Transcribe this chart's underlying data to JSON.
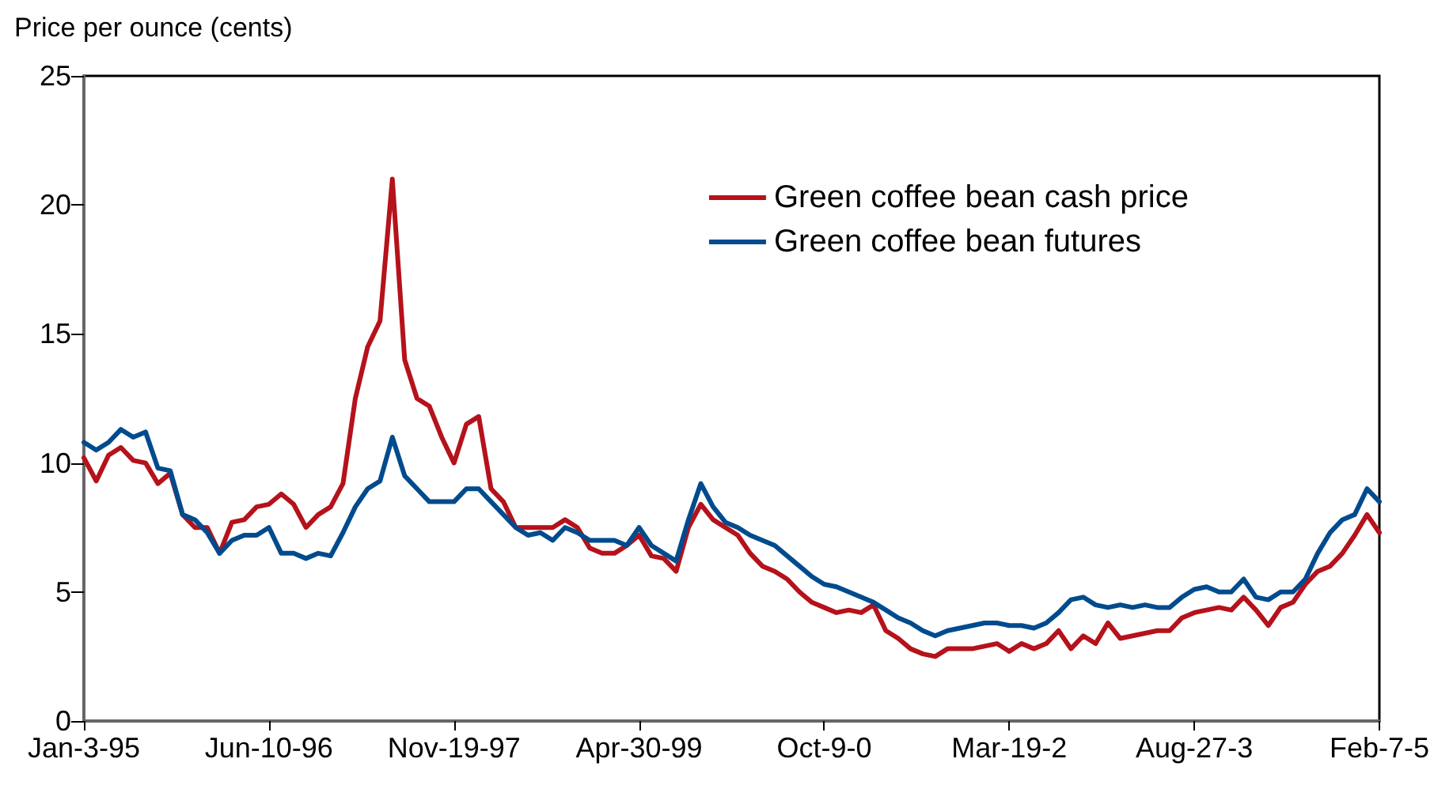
{
  "chart_data": {
    "type": "line",
    "ylabel": "Price per ounce (cents)",
    "categories": [
      "Jan-3-95",
      null,
      null,
      null,
      null,
      null,
      null,
      null,
      null,
      null,
      null,
      null,
      null,
      null,
      null,
      "Jun-10-96",
      null,
      null,
      null,
      null,
      null,
      null,
      null,
      null,
      null,
      null,
      null,
      null,
      null,
      null,
      "Nov-19-97",
      null,
      null,
      null,
      null,
      null,
      null,
      null,
      null,
      null,
      null,
      null,
      null,
      null,
      null,
      "Apr-30-99",
      null,
      null,
      null,
      null,
      null,
      null,
      null,
      null,
      null,
      null,
      null,
      null,
      null,
      null,
      "Oct-9-0",
      null,
      null,
      null,
      null,
      null,
      null,
      null,
      null,
      null,
      null,
      null,
      null,
      null,
      null,
      "Mar-19-2",
      null,
      null,
      null,
      null,
      null,
      null,
      null,
      null,
      null,
      null,
      null,
      null,
      null,
      null,
      "Aug-27-3",
      null,
      null,
      null,
      null,
      null,
      null,
      null,
      null,
      null,
      null,
      null,
      null,
      null,
      null,
      "Feb-7-5"
    ],
    "series": [
      {
        "name": "Green coffee bean cash price",
        "color": "#b5121b",
        "values": [
          10.2,
          9.3,
          10.3,
          10.6,
          10.1,
          10.0,
          9.2,
          9.6,
          8.0,
          7.5,
          7.5,
          6.5,
          7.7,
          7.8,
          8.3,
          8.4,
          8.8,
          8.4,
          7.5,
          8.0,
          8.3,
          9.2,
          12.5,
          14.5,
          15.5,
          21.0,
          14.0,
          12.5,
          12.2,
          11.0,
          10.0,
          11.5,
          11.8,
          9.0,
          8.5,
          7.5,
          7.5,
          7.5,
          7.5,
          7.8,
          7.5,
          6.7,
          6.5,
          6.5,
          6.8,
          7.2,
          6.4,
          6.3,
          5.8,
          7.5,
          8.4,
          7.8,
          7.5,
          7.2,
          6.5,
          6.0,
          5.8,
          5.5,
          5.0,
          4.6,
          4.4,
          4.2,
          4.3,
          4.2,
          4.5,
          3.5,
          3.2,
          2.8,
          2.6,
          2.5,
          2.8,
          2.8,
          2.8,
          2.9,
          3.0,
          2.7,
          3.0,
          2.8,
          3.0,
          3.5,
          2.8,
          3.3,
          3.0,
          3.8,
          3.2,
          3.3,
          3.4,
          3.5,
          3.5,
          4.0,
          4.2,
          4.3,
          4.4,
          4.3,
          4.8,
          4.3,
          3.7,
          4.4,
          4.6,
          5.3,
          5.8,
          6.0,
          6.5,
          7.2,
          8.0,
          7.3
        ]
      },
      {
        "name": "Green coffee bean futures",
        "color": "#004b8d",
        "values": [
          10.8,
          10.5,
          10.8,
          11.3,
          11.0,
          11.2,
          9.8,
          9.7,
          8.0,
          7.8,
          7.3,
          6.5,
          7.0,
          7.2,
          7.2,
          7.5,
          6.5,
          6.5,
          6.3,
          6.5,
          6.4,
          7.3,
          8.3,
          9.0,
          9.3,
          11.0,
          9.5,
          9.0,
          8.5,
          8.5,
          8.5,
          9.0,
          9.0,
          8.5,
          8.0,
          7.5,
          7.2,
          7.3,
          7.0,
          7.5,
          7.3,
          7.0,
          7.0,
          7.0,
          6.8,
          7.5,
          6.8,
          6.5,
          6.2,
          7.8,
          9.2,
          8.3,
          7.7,
          7.5,
          7.2,
          7.0,
          6.8,
          6.4,
          6.0,
          5.6,
          5.3,
          5.2,
          5.0,
          4.8,
          4.6,
          4.3,
          4.0,
          3.8,
          3.5,
          3.3,
          3.5,
          3.6,
          3.7,
          3.8,
          3.8,
          3.7,
          3.7,
          3.6,
          3.8,
          4.2,
          4.7,
          4.8,
          4.5,
          4.4,
          4.5,
          4.4,
          4.5,
          4.4,
          4.4,
          4.8,
          5.1,
          5.2,
          5.0,
          5.0,
          5.5,
          4.8,
          4.7,
          5.0,
          5.0,
          5.5,
          6.5,
          7.3,
          7.8,
          8.0,
          9.0,
          8.5
        ]
      }
    ],
    "ylim": [
      0,
      25
    ],
    "yticks": [
      0,
      5,
      10,
      15,
      20,
      25
    ],
    "grid": false,
    "legend": "top right",
    "marker": "none",
    "line_style": "solid"
  }
}
